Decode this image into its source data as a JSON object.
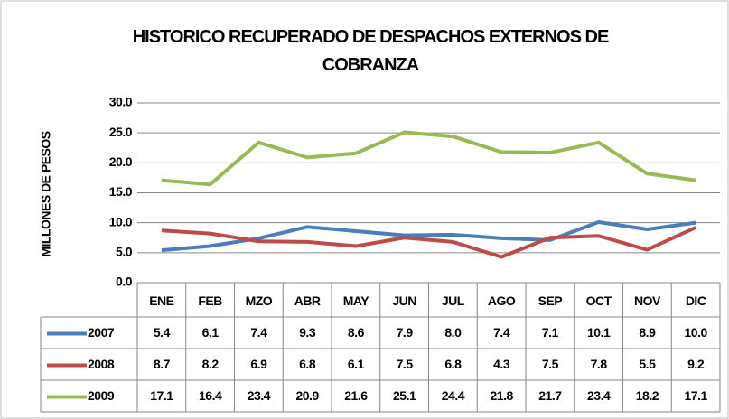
{
  "chart_data": {
    "type": "line",
    "title": "HISTORICO RECUPERADO DE DESPACHOS EXTERNOS DE COBRANZA",
    "y_label": "MILLONES DE PESOS",
    "categories": [
      "ENE",
      "FEB",
      "MZO",
      "ABR",
      "MAY",
      "JUN",
      "JUL",
      "AGO",
      "SEP",
      "OCT",
      "NOV",
      "DIC"
    ],
    "series": [
      {
        "name": "2007",
        "color": "#4a7ebb",
        "values": [
          5.4,
          6.1,
          7.4,
          9.3,
          8.6,
          7.9,
          8.0,
          7.4,
          7.1,
          10.1,
          8.9,
          10.0
        ],
        "value_labels": [
          "5.4",
          "6.1",
          "7.4",
          "9.3",
          "8.6",
          "7.9",
          "8.0",
          "7.4",
          "7.1",
          "10.1",
          "8.9",
          "10.0"
        ]
      },
      {
        "name": "2008",
        "color": "#be4b48",
        "values": [
          8.7,
          8.2,
          6.9,
          6.8,
          6.1,
          7.5,
          6.8,
          4.3,
          7.5,
          7.8,
          5.5,
          9.2
        ],
        "value_labels": [
          "8.7",
          "8.2",
          "6.9",
          "6.8",
          "6.1",
          "7.5",
          "6.8",
          "4.3",
          "7.5",
          "7.8",
          "5.5",
          "9.2"
        ]
      },
      {
        "name": "2009",
        "color": "#98b954",
        "values": [
          17.1,
          16.4,
          23.4,
          20.9,
          21.6,
          25.1,
          24.4,
          21.8,
          21.7,
          23.4,
          18.2,
          17.1
        ],
        "value_labels": [
          "17.1",
          "16.4",
          "23.4",
          "20.9",
          "21.6",
          "25.1",
          "24.4",
          "21.8",
          "21.7",
          "23.4",
          "18.2",
          "17.1"
        ]
      }
    ],
    "ylim": [
      0,
      30
    ],
    "yticks": [
      {
        "value": 0,
        "label": "0.0"
      },
      {
        "value": 5,
        "label": "5.0"
      },
      {
        "value": 10,
        "label": "10.0"
      },
      {
        "value": 15,
        "label": "15.0"
      },
      {
        "value": 20,
        "label": "20.0"
      },
      {
        "value": 25,
        "label": "25.0"
      },
      {
        "value": 30,
        "label": "30.0"
      }
    ],
    "grid": true,
    "data_table": true
  }
}
